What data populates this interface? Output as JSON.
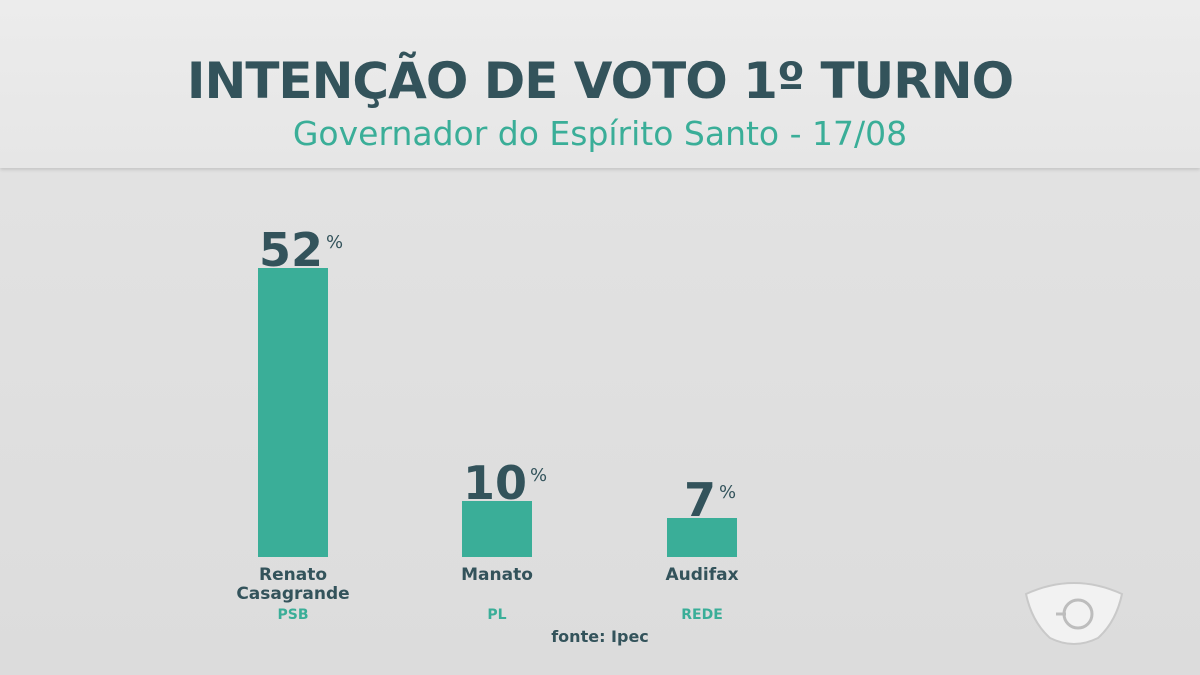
{
  "chart_data": {
    "type": "bar",
    "title": "INTENÇÃO DE VOTO 1º TURNO",
    "subtitle": "Governador do Espírito Santo - 17/08",
    "categories": [
      "Renato Casagrande",
      "Manato",
      "Audifax"
    ],
    "parties": [
      "PSB",
      "PL",
      "REDE"
    ],
    "values": [
      52,
      10,
      7
    ],
    "unit": "%",
    "xlabel": "",
    "ylabel": "",
    "ylim": [
      0,
      52
    ],
    "grid": false,
    "source": "fonte: Ipec"
  },
  "colors": {
    "bar": "#3aae98",
    "text_dark": "#33535b",
    "accent": "#3aae98"
  },
  "logo": {
    "icon": "network-eye-logo"
  }
}
